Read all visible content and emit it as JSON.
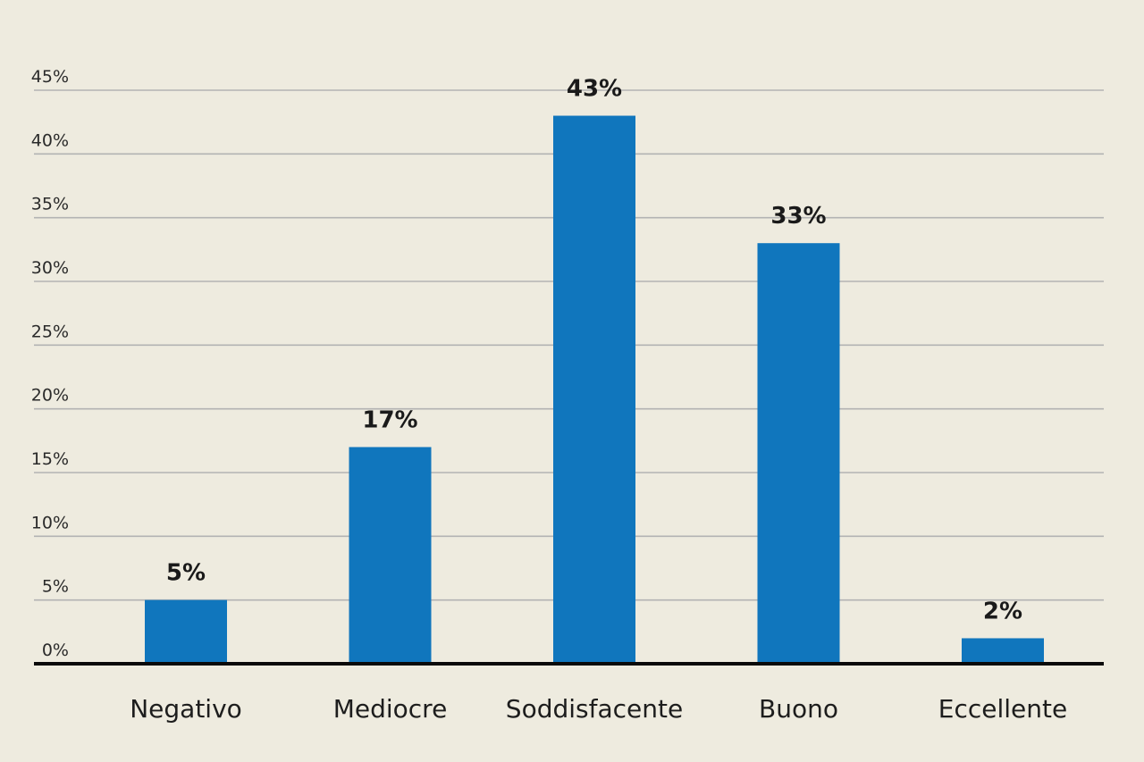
{
  "chart_data": {
    "type": "bar",
    "categories": [
      "Negativo",
      "Mediocre",
      "Soddisfacente",
      "Buono",
      "Eccellente"
    ],
    "values": [
      5,
      17,
      43,
      33,
      2
    ],
    "data_labels": [
      "5%",
      "17%",
      "43%",
      "33%",
      "2%"
    ],
    "yticks": [
      0,
      5,
      10,
      15,
      20,
      25,
      30,
      35,
      40,
      45
    ],
    "ytick_labels": [
      "0%",
      "5%",
      "10%",
      "15%",
      "20%",
      "25%",
      "30%",
      "35%",
      "40%",
      "45%"
    ],
    "ylim": [
      0,
      45
    ],
    "grid": true,
    "legend": "none",
    "title": "",
    "xlabel": "",
    "ylabel": "",
    "colors": {
      "bar": "#1076bd",
      "background": "#eeebdf",
      "grid": "#b3b3b3",
      "axis": "#0a0a0a"
    }
  }
}
